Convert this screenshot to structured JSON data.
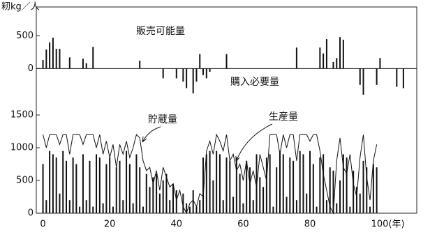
{
  "chart_data": [
    {
      "type": "bar",
      "ylabel": "籾kg／人",
      "annotations": [
        "販売可能量",
        "購入必要量"
      ],
      "xlim": [
        -2,
        112
      ],
      "ylim": [
        -550,
        940
      ],
      "yticks": [
        0,
        500
      ],
      "series": [
        {
          "color": "#111111",
          "x": [
            0,
            1,
            2,
            3,
            4,
            5,
            8,
            12,
            13,
            15,
            29,
            47,
            55,
            76,
            83,
            84,
            85,
            87,
            88,
            89,
            90,
            101
          ],
          "values": [
            130,
            290,
            400,
            470,
            300,
            300,
            170,
            150,
            80,
            330,
            120,
            220,
            220,
            320,
            320,
            230,
            450,
            100,
            160,
            480,
            440,
            160
          ]
        },
        {
          "color": "#111111",
          "x": [
            36,
            40,
            42,
            43,
            45,
            46,
            48,
            49,
            50,
            95,
            96,
            100,
            106,
            108
          ],
          "values": [
            -150,
            -150,
            -200,
            -300,
            -380,
            -200,
            -100,
            -150,
            -50,
            -250,
            -400,
            -250,
            -280,
            -300
          ]
        }
      ]
    },
    {
      "type": "combo",
      "annotations": [
        "貯蔵量",
        "生産量"
      ],
      "xlim": [
        -2,
        112
      ],
      "ylim": [
        0,
        1660
      ],
      "yticks": [
        0,
        500,
        1000,
        1500
      ],
      "xticks": [
        0,
        20,
        40,
        60,
        80,
        {
          "value": 100,
          "label": "100(年)"
        }
      ],
      "x": [
        0,
        1,
        2,
        3,
        4,
        5,
        6,
        7,
        8,
        9,
        10,
        11,
        12,
        13,
        14,
        15,
        16,
        17,
        18,
        19,
        20,
        21,
        22,
        23,
        24,
        25,
        26,
        27,
        28,
        29,
        30,
        31,
        32,
        33,
        34,
        35,
        36,
        37,
        38,
        39,
        40,
        41,
        42,
        43,
        44,
        45,
        46,
        47,
        48,
        49,
        50,
        51,
        52,
        53,
        54,
        55,
        56,
        57,
        58,
        59,
        60,
        61,
        62,
        63,
        64,
        65,
        66,
        67,
        68,
        69,
        70,
        71,
        72,
        73,
        74,
        75,
        76,
        77,
        78,
        79,
        80,
        81,
        82,
        83,
        84,
        85,
        86,
        87,
        88,
        89,
        90,
        91,
        92,
        93,
        94,
        95,
        96,
        97,
        98,
        99,
        100
      ],
      "series": [
        {
          "kind": "bar",
          "color": "#111111",
          "values": [
            750,
            200,
            950,
            900,
            850,
            300,
            950,
            800,
            200,
            850,
            750,
            100,
            900,
            200,
            800,
            100,
            900,
            850,
            150,
            750,
            850,
            100,
            700,
            800,
            200,
            950,
            750,
            150,
            900,
            700,
            100,
            600,
            400,
            550,
            600,
            300,
            500,
            600,
            200,
            450,
            350,
            0,
            300,
            150,
            100,
            350,
            100,
            200,
            850,
            900,
            950,
            500,
            950,
            900,
            200,
            850,
            800,
            250,
            850,
            600,
            150,
            800,
            700,
            200,
            900,
            550,
            400,
            850,
            900,
            100,
            700,
            950,
            900,
            250,
            850,
            800,
            200,
            950,
            900,
            300,
            950,
            750,
            100,
            850,
            900,
            200,
            700,
            650,
            150,
            500,
            900,
            850,
            100,
            650,
            400,
            300,
            800,
            700,
            100,
            750,
            700
          ]
        },
        {
          "kind": "line",
          "color": "#111111",
          "values": [
            1200,
            1000,
            1200,
            1200,
            1200,
            1050,
            1200,
            1200,
            900,
            1200,
            1200,
            1200,
            1050,
            1200,
            1200,
            1200,
            1000,
            1200,
            900,
            1100,
            850,
            1050,
            700,
            1050,
            900,
            1100,
            850,
            1000,
            1200,
            1150,
            800,
            650,
            700,
            450,
            650,
            350,
            700,
            550,
            400,
            450,
            200,
            350,
            100,
            0,
            150,
            200,
            100,
            300,
            250,
            950,
            1100,
            900,
            1200,
            1100,
            950,
            1200,
            800,
            900,
            650,
            750,
            500,
            800,
            450,
            650,
            400,
            900,
            700,
            500,
            1200,
            1200,
            1200,
            900,
            1200,
            1000,
            1200,
            1200,
            800,
            1200,
            1200,
            1200,
            1100,
            1200,
            1200,
            950,
            600,
            350,
            100,
            0,
            800,
            1150,
            700,
            600,
            900,
            450,
            250,
            850,
            1200,
            550,
            200,
            800,
            1050
          ]
        }
      ]
    }
  ]
}
